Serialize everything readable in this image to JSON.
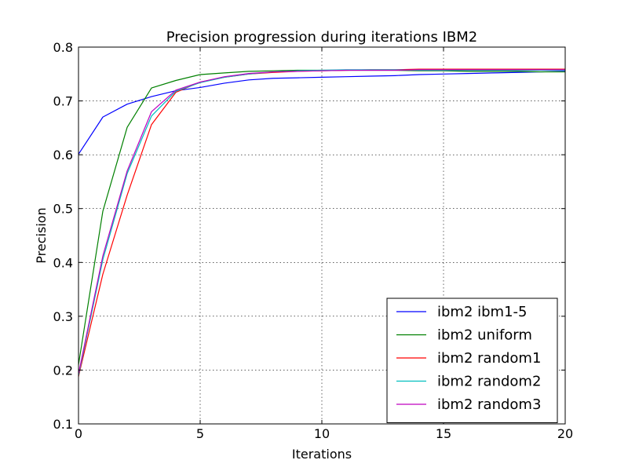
{
  "chart_data": {
    "type": "line",
    "title": "Precision progression during iterations IBM2",
    "xlabel": "Iterations",
    "ylabel": "Precision",
    "xlim": [
      0,
      20
    ],
    "ylim": [
      0.1,
      0.8
    ],
    "xticks": [
      0,
      5,
      10,
      15,
      20
    ],
    "xtick_labels": [
      "0",
      "5",
      "10",
      "15",
      "20"
    ],
    "yticks": [
      0.1,
      0.2,
      0.3,
      0.4,
      0.5,
      0.6,
      0.7,
      0.8
    ],
    "ytick_labels": [
      "0.1",
      "0.2",
      "0.3",
      "0.4",
      "0.5",
      "0.6",
      "0.7",
      "0.8"
    ],
    "grid": true,
    "legend_position": "lower-right",
    "x": [
      0,
      1,
      2,
      3,
      4,
      5,
      6,
      7,
      8,
      9,
      10,
      11,
      12,
      13,
      14,
      15,
      16,
      17,
      18,
      19,
      20
    ],
    "series": [
      {
        "name": "ibm2 ibm1-5",
        "color": "#0000ff",
        "values": [
          0.601,
          0.67,
          0.694,
          0.708,
          0.719,
          0.725,
          0.733,
          0.739,
          0.742,
          0.743,
          0.744,
          0.745,
          0.746,
          0.747,
          0.749,
          0.75,
          0.751,
          0.752,
          0.753,
          0.754,
          0.755
        ]
      },
      {
        "name": "ibm2 uniform",
        "color": "#008000",
        "values": [
          0.21,
          0.495,
          0.651,
          0.724,
          0.738,
          0.749,
          0.752,
          0.755,
          0.756,
          0.757,
          0.757,
          0.757,
          0.757,
          0.757,
          0.756,
          0.756,
          0.755,
          0.755,
          0.755,
          0.754,
          0.754
        ]
      },
      {
        "name": "ibm2 random1",
        "color": "#ff0000",
        "values": [
          0.188,
          0.378,
          0.525,
          0.656,
          0.716,
          0.735,
          0.744,
          0.75,
          0.753,
          0.755,
          0.756,
          0.757,
          0.758,
          0.758,
          0.759,
          0.759,
          0.759,
          0.759,
          0.759,
          0.759,
          0.759
        ]
      },
      {
        "name": "ibm2 random2",
        "color": "#00bfbf",
        "values": [
          0.19,
          0.405,
          0.565,
          0.672,
          0.718,
          0.734,
          0.744,
          0.75,
          0.754,
          0.756,
          0.757,
          0.758,
          0.758,
          0.758,
          0.757,
          0.757,
          0.757,
          0.757,
          0.757,
          0.757,
          0.757
        ]
      },
      {
        "name": "ibm2 random3",
        "color": "#bf00bf",
        "values": [
          0.193,
          0.412,
          0.57,
          0.68,
          0.72,
          0.735,
          0.745,
          0.751,
          0.754,
          0.755,
          0.756,
          0.757,
          0.757,
          0.757,
          0.758,
          0.758,
          0.758,
          0.758,
          0.758,
          0.758,
          0.758
        ]
      }
    ]
  }
}
